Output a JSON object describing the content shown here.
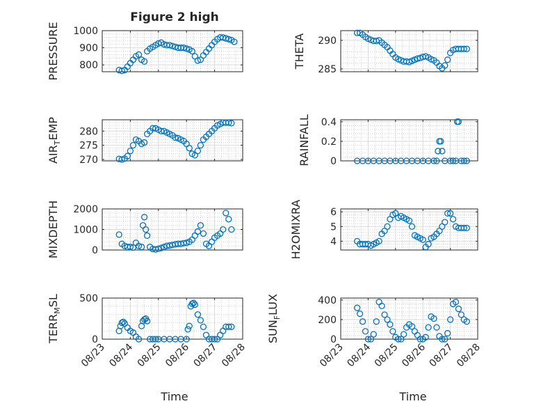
{
  "figure": {
    "title": "Figure 2 high",
    "xlabel": "Time",
    "x_tick_labels": [
      "08/23",
      "08/24",
      "08/25",
      "08/26",
      "08/27",
      "08/28"
    ],
    "marker_color": "#0072BD"
  },
  "chart_data": [
    {
      "id": "pressure",
      "type": "scatter",
      "ylabel": "PRESSURE",
      "ylim": [
        760,
        1000
      ],
      "yticks": [
        800,
        900,
        1000
      ],
      "grid": true,
      "series": [
        {
          "x": [
            0.6,
            0.7,
            0.8,
            0.9,
            1.0,
            1.1,
            1.2,
            1.3,
            1.4,
            1.5,
            1.6,
            1.7,
            1.8,
            1.9,
            2.0,
            2.1,
            2.2,
            2.3,
            2.4,
            2.5,
            2.6,
            2.7,
            2.8,
            2.9,
            3.0,
            3.1,
            3.2,
            3.3,
            3.4,
            3.5,
            3.6,
            3.7,
            3.8,
            3.9,
            4.0,
            4.1,
            4.2,
            4.3,
            4.4,
            4.5,
            4.6,
            4.7
          ],
          "y": [
            770,
            765,
            770,
            790,
            810,
            830,
            850,
            860,
            830,
            820,
            880,
            895,
            905,
            915,
            925,
            930,
            920,
            915,
            915,
            910,
            905,
            900,
            900,
            900,
            895,
            890,
            880,
            850,
            825,
            830,
            855,
            875,
            895,
            915,
            935,
            950,
            960,
            960,
            955,
            950,
            945,
            935
          ]
        }
      ]
    },
    {
      "id": "theta",
      "type": "scatter",
      "ylabel": "THETA",
      "ylim": [
        284.5,
        291.7
      ],
      "yticks": [
        285,
        290
      ],
      "grid": true,
      "series": [
        {
          "x": [
            0.6,
            0.7,
            0.8,
            0.9,
            1.0,
            1.1,
            1.2,
            1.3,
            1.4,
            1.5,
            1.6,
            1.7,
            1.8,
            1.9,
            2.0,
            2.1,
            2.2,
            2.3,
            2.4,
            2.5,
            2.6,
            2.7,
            2.8,
            2.9,
            3.0,
            3.1,
            3.2,
            3.3,
            3.4,
            3.5,
            3.6,
            3.7,
            3.8,
            3.9,
            4.0,
            4.1,
            4.2,
            4.3,
            4.4,
            4.5,
            4.6
          ],
          "y": [
            291.3,
            291.3,
            291.0,
            290.6,
            290.3,
            290.1,
            289.9,
            289.9,
            290.0,
            289.6,
            289.2,
            288.8,
            288.2,
            287.6,
            287.0,
            286.7,
            286.5,
            286.3,
            286.3,
            286.2,
            286.4,
            286.6,
            286.8,
            286.9,
            287.1,
            287.2,
            287.0,
            286.7,
            286.5,
            286.1,
            285.5,
            285.1,
            285.6,
            286.6,
            287.8,
            288.3,
            288.5,
            288.5,
            288.5,
            288.5,
            288.5
          ]
        }
      ]
    },
    {
      "id": "air_temp",
      "type": "scatter",
      "ylabel": "AIR_TEMP",
      "ylim": [
        269.5,
        284
      ],
      "yticks": [
        270,
        275,
        280
      ],
      "grid": true,
      "series": [
        {
          "x": [
            0.6,
            0.7,
            0.8,
            0.9,
            1.0,
            1.1,
            1.2,
            1.3,
            1.4,
            1.5,
            1.6,
            1.7,
            1.8,
            1.9,
            2.0,
            2.1,
            2.2,
            2.3,
            2.4,
            2.5,
            2.6,
            2.7,
            2.8,
            2.9,
            3.0,
            3.1,
            3.2,
            3.3,
            3.4,
            3.5,
            3.6,
            3.7,
            3.8,
            3.9,
            4.0,
            4.1,
            4.2,
            4.3,
            4.4,
            4.5,
            4.6
          ],
          "y": [
            270.2,
            270.0,
            270.3,
            271.2,
            273.0,
            275.0,
            277.0,
            276.5,
            275.5,
            276.0,
            279.0,
            280.0,
            281.0,
            281.0,
            280.5,
            280.0,
            280.0,
            279.5,
            279.0,
            278.5,
            277.7,
            277.5,
            277.0,
            276.5,
            275.5,
            274.0,
            272.0,
            271.5,
            273.0,
            275.0,
            277.0,
            278.0,
            279.0,
            280.0,
            281.0,
            282.0,
            282.5,
            283.0,
            283.0,
            283.0,
            282.8
          ]
        }
      ]
    },
    {
      "id": "rainfall",
      "type": "scatter",
      "ylabel": "RAINFALL",
      "ylim": [
        0,
        0.42
      ],
      "yticks": [
        0,
        0.2,
        0.4
      ],
      "grid": true,
      "series": [
        {
          "x": [
            0.6,
            0.8,
            1.0,
            1.2,
            1.4,
            1.6,
            1.8,
            2.0,
            2.2,
            2.4,
            2.6,
            2.8,
            3.0,
            3.2,
            3.4,
            3.5,
            3.55,
            3.6,
            3.65,
            3.7,
            3.8,
            4.0,
            4.1,
            4.2,
            4.25,
            4.3,
            4.4,
            4.5,
            4.6
          ],
          "y": [
            0,
            0,
            0,
            0,
            0,
            0,
            0,
            0,
            0,
            0,
            0,
            0,
            0,
            0,
            0,
            0,
            0.1,
            0.2,
            0.2,
            0.1,
            0,
            0,
            0,
            0,
            0.4,
            0.4,
            0,
            0,
            0
          ]
        }
      ]
    },
    {
      "id": "mixdepth",
      "type": "scatter",
      "ylabel": "MIXDEPTH",
      "ylim": [
        0,
        2000
      ],
      "yticks": [
        0,
        1000,
        2000
      ],
      "grid": true,
      "series": [
        {
          "x": [
            0.6,
            0.7,
            0.8,
            0.9,
            1.0,
            1.1,
            1.2,
            1.3,
            1.4,
            1.45,
            1.5,
            1.55,
            1.6,
            1.7,
            1.8,
            1.9,
            2.0,
            2.1,
            2.2,
            2.3,
            2.4,
            2.5,
            2.6,
            2.7,
            2.8,
            2.9,
            3.0,
            3.1,
            3.2,
            3.3,
            3.4,
            3.5,
            3.6,
            3.7,
            3.8,
            3.9,
            4.0,
            4.1,
            4.2,
            4.3,
            4.4,
            4.5,
            4.6
          ],
          "y": [
            750,
            300,
            200,
            150,
            150,
            120,
            350,
            200,
            150,
            1200,
            1600,
            1000,
            700,
            150,
            50,
            30,
            60,
            100,
            150,
            200,
            220,
            250,
            280,
            300,
            300,
            330,
            350,
            400,
            500,
            700,
            900,
            1200,
            800,
            300,
            200,
            400,
            600,
            700,
            800,
            1000,
            1800,
            1500,
            1000
          ]
        }
      ]
    },
    {
      "id": "h2omixra",
      "type": "scatter",
      "ylabel": "H2OMIXRA",
      "ylim": [
        3.4,
        6.2
      ],
      "yticks": [
        4,
        5,
        6
      ],
      "grid": true,
      "series": [
        {
          "x": [
            0.6,
            0.7,
            0.8,
            0.9,
            1.0,
            1.1,
            1.2,
            1.3,
            1.4,
            1.5,
            1.6,
            1.7,
            1.8,
            1.9,
            2.0,
            2.1,
            2.2,
            2.3,
            2.4,
            2.5,
            2.6,
            2.7,
            2.8,
            2.9,
            3.0,
            3.1,
            3.2,
            3.3,
            3.4,
            3.5,
            3.6,
            3.7,
            3.8,
            3.9,
            4.0,
            4.1,
            4.2,
            4.3,
            4.4,
            4.5,
            4.6
          ],
          "y": [
            4.0,
            3.8,
            3.8,
            3.8,
            3.8,
            3.7,
            3.8,
            3.9,
            4.0,
            4.5,
            4.7,
            5.0,
            5.5,
            5.8,
            5.9,
            5.6,
            5.7,
            5.6,
            5.5,
            5.4,
            5.0,
            4.4,
            4.3,
            4.2,
            4.1,
            3.6,
            3.8,
            4.2,
            4.3,
            4.5,
            4.7,
            5.0,
            5.3,
            5.9,
            5.9,
            5.5,
            5.0,
            4.9,
            4.9,
            4.9,
            4.9
          ]
        }
      ]
    },
    {
      "id": "terr_msl",
      "type": "scatter",
      "ylabel": "TERR_MSL",
      "ylim": [
        0,
        500
      ],
      "yticks": [
        0,
        500
      ],
      "grid": true,
      "series": [
        {
          "x": [
            0.6,
            0.65,
            0.7,
            0.75,
            0.8,
            0.9,
            1.0,
            1.1,
            1.2,
            1.3,
            1.4,
            1.45,
            1.5,
            1.55,
            1.6,
            1.7,
            1.8,
            1.9,
            2.0,
            2.2,
            2.4,
            2.6,
            2.8,
            3.0,
            3.05,
            3.1,
            3.15,
            3.2,
            3.25,
            3.3,
            3.4,
            3.5,
            3.6,
            3.7,
            3.8,
            3.9,
            4.0,
            4.1,
            4.2,
            4.3,
            4.4,
            4.5,
            4.6
          ],
          "y": [
            100,
            160,
            200,
            210,
            190,
            140,
            100,
            80,
            30,
            0,
            160,
            220,
            240,
            250,
            220,
            0,
            0,
            0,
            0,
            0,
            0,
            0,
            0,
            0,
            120,
            160,
            400,
            430,
            440,
            420,
            300,
            230,
            150,
            50,
            0,
            0,
            0,
            0,
            50,
            100,
            150,
            150,
            150
          ]
        }
      ]
    },
    {
      "id": "sun_flux",
      "type": "scatter",
      "ylabel": "SUN_FLUX",
      "ylim": [
        0,
        420
      ],
      "yticks": [
        0,
        200,
        400
      ],
      "grid": true,
      "series": [
        {
          "x": [
            0.6,
            0.7,
            0.8,
            0.9,
            1.0,
            1.1,
            1.2,
            1.3,
            1.4,
            1.5,
            1.6,
            1.7,
            1.8,
            1.9,
            2.0,
            2.1,
            2.2,
            2.3,
            2.4,
            2.5,
            2.6,
            2.7,
            2.8,
            2.9,
            3.0,
            3.1,
            3.2,
            3.3,
            3.4,
            3.5,
            3.6,
            3.7,
            3.8,
            3.9,
            4.0,
            4.1,
            4.2,
            4.3,
            4.4,
            4.5,
            4.6
          ],
          "y": [
            320,
            260,
            180,
            80,
            0,
            0,
            50,
            180,
            380,
            340,
            250,
            200,
            150,
            80,
            20,
            0,
            0,
            50,
            120,
            150,
            130,
            80,
            40,
            0,
            0,
            20,
            120,
            230,
            210,
            120,
            30,
            0,
            0,
            60,
            200,
            360,
            380,
            310,
            250,
            200,
            180
          ]
        }
      ]
    }
  ]
}
